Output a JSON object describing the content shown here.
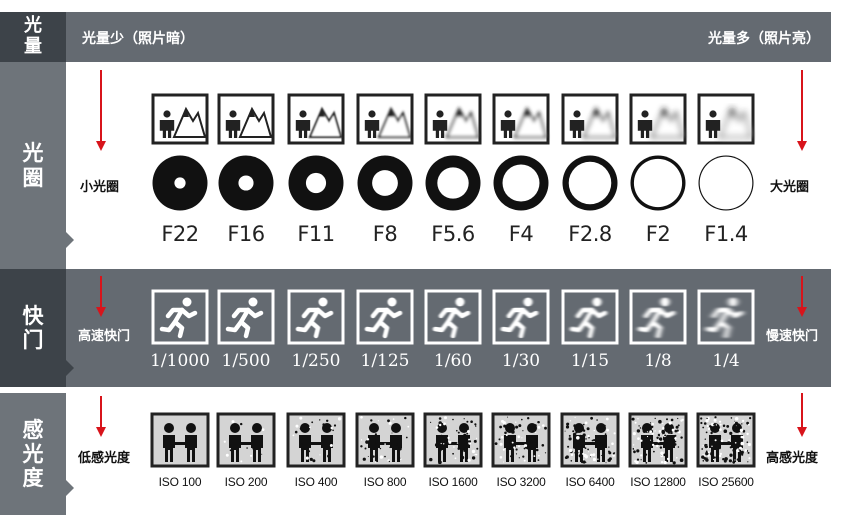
{
  "header": {
    "title": "光量",
    "left": "光量少（照片暗）",
    "right": "光量多（照片亮）"
  },
  "aperture": {
    "title": "光圈",
    "left": "小光圈",
    "right": "大光圈",
    "stops": [
      "F22",
      "F16",
      "F11",
      "F8",
      "F5.6",
      "F4",
      "F2.8",
      "F2",
      "F1.4"
    ],
    "blur": [
      0,
      0.3,
      0.7,
      1.1,
      1.5,
      1.9,
      2.3,
      2.8,
      3.4
    ],
    "hole_fraction": [
      0.2,
      0.27,
      0.36,
      0.46,
      0.56,
      0.66,
      0.76,
      0.86,
      0.94
    ],
    "icon_name": "portrait-landscape-icon"
  },
  "shutter": {
    "title": "快门",
    "left": "高速快门",
    "right": "慢速快门",
    "speeds": [
      "1/1000",
      "1/500",
      "1/250",
      "1/125",
      "1/60",
      "1/30",
      "1/15",
      "1/8",
      "1/4"
    ],
    "blur": [
      0,
      0.2,
      0.4,
      0.7,
      1.0,
      1.3,
      1.7,
      2.2,
      2.8
    ],
    "icon_name": "running-man-icon"
  },
  "iso": {
    "title": "感光度",
    "left": "低感光度",
    "right": "高感光度",
    "values": [
      "ISO 100",
      "ISO 200",
      "ISO 400",
      "ISO 800",
      "ISO 1600",
      "ISO 3200",
      "ISO 6400",
      "ISO 12800",
      "ISO 25600"
    ],
    "noise": [
      0,
      12,
      24,
      36,
      50,
      64,
      80,
      96,
      112
    ],
    "icon_name": "handshake-icon"
  },
  "colors": {
    "band": "#646a71",
    "side_dark": "#3d4349",
    "side_light": "#6e747a",
    "arrow": "#d8141b"
  }
}
